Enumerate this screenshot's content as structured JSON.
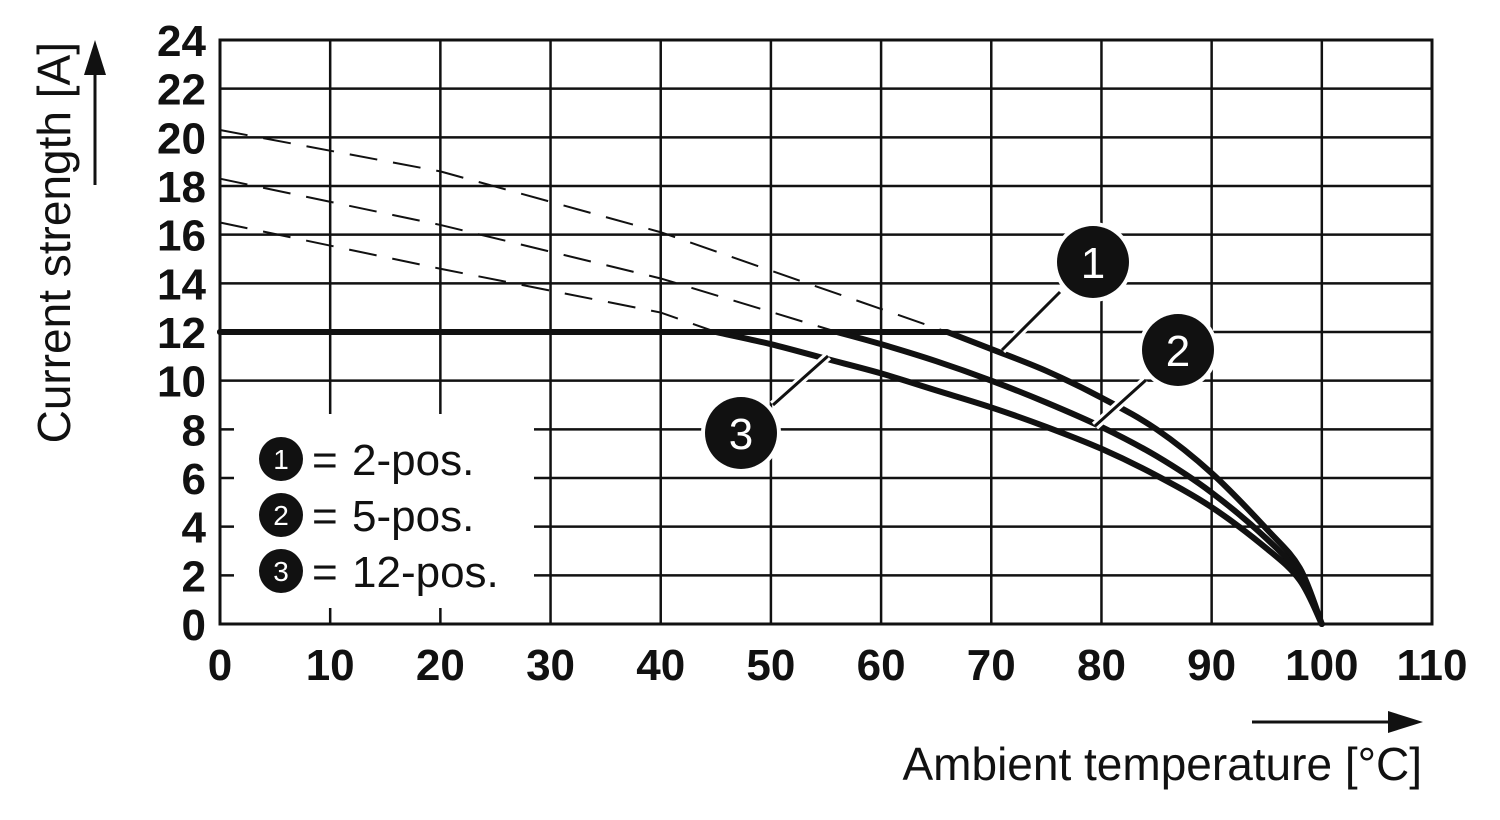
{
  "chart_data": {
    "type": "line",
    "title": "",
    "xlabel": "Ambient temperature [°C]",
    "ylabel": "Current strength [A]",
    "xlim": [
      0,
      110
    ],
    "ylim": [
      0,
      24
    ],
    "x_ticks": [
      "0",
      "10",
      "20",
      "30",
      "40",
      "50",
      "60",
      "70",
      "80",
      "90",
      "100",
      "110"
    ],
    "y_ticks": [
      "0",
      "2",
      "4",
      "6",
      "8",
      "10",
      "12",
      "14",
      "16",
      "18",
      "20",
      "22",
      "24"
    ],
    "grid": true,
    "limit": {
      "value": 12
    },
    "series": [
      {
        "marker": "1",
        "name": "2-pos.",
        "extrapolated": {
          "x": [
            0,
            20,
            40,
            66
          ],
          "y": [
            20.3,
            18.6,
            16.1,
            12.0
          ]
        },
        "values": {
          "x": [
            0,
            66,
            70,
            75,
            80,
            85,
            90,
            95,
            98,
            100
          ],
          "y": [
            12.0,
            12.0,
            11.3,
            10.4,
            9.3,
            8.0,
            6.2,
            3.9,
            2.3,
            0
          ]
        }
      },
      {
        "marker": "2",
        "name": "5-pos.",
        "extrapolated": {
          "x": [
            0,
            20,
            40,
            56
          ],
          "y": [
            18.3,
            16.4,
            14.2,
            12.0
          ]
        },
        "values": {
          "x": [
            0,
            56,
            60,
            65,
            70,
            75,
            80,
            85,
            90,
            95,
            98,
            100
          ],
          "y": [
            12.0,
            12.0,
            11.5,
            10.8,
            10.0,
            9.1,
            8.1,
            6.9,
            5.4,
            3.5,
            2.0,
            0
          ]
        }
      },
      {
        "marker": "3",
        "name": "12-pos.",
        "extrapolated": {
          "x": [
            0,
            20,
            40,
            45
          ],
          "y": [
            16.5,
            14.6,
            12.8,
            12.0
          ]
        },
        "values": {
          "x": [
            0,
            45,
            50,
            55,
            60,
            65,
            70,
            75,
            80,
            85,
            90,
            95,
            98,
            100
          ],
          "y": [
            12.0,
            12.0,
            11.5,
            10.9,
            10.3,
            9.6,
            8.9,
            8.1,
            7.2,
            6.1,
            4.8,
            3.1,
            1.8,
            0
          ]
        }
      }
    ],
    "legend": {
      "position": "bottom-left",
      "separator": "="
    }
  }
}
